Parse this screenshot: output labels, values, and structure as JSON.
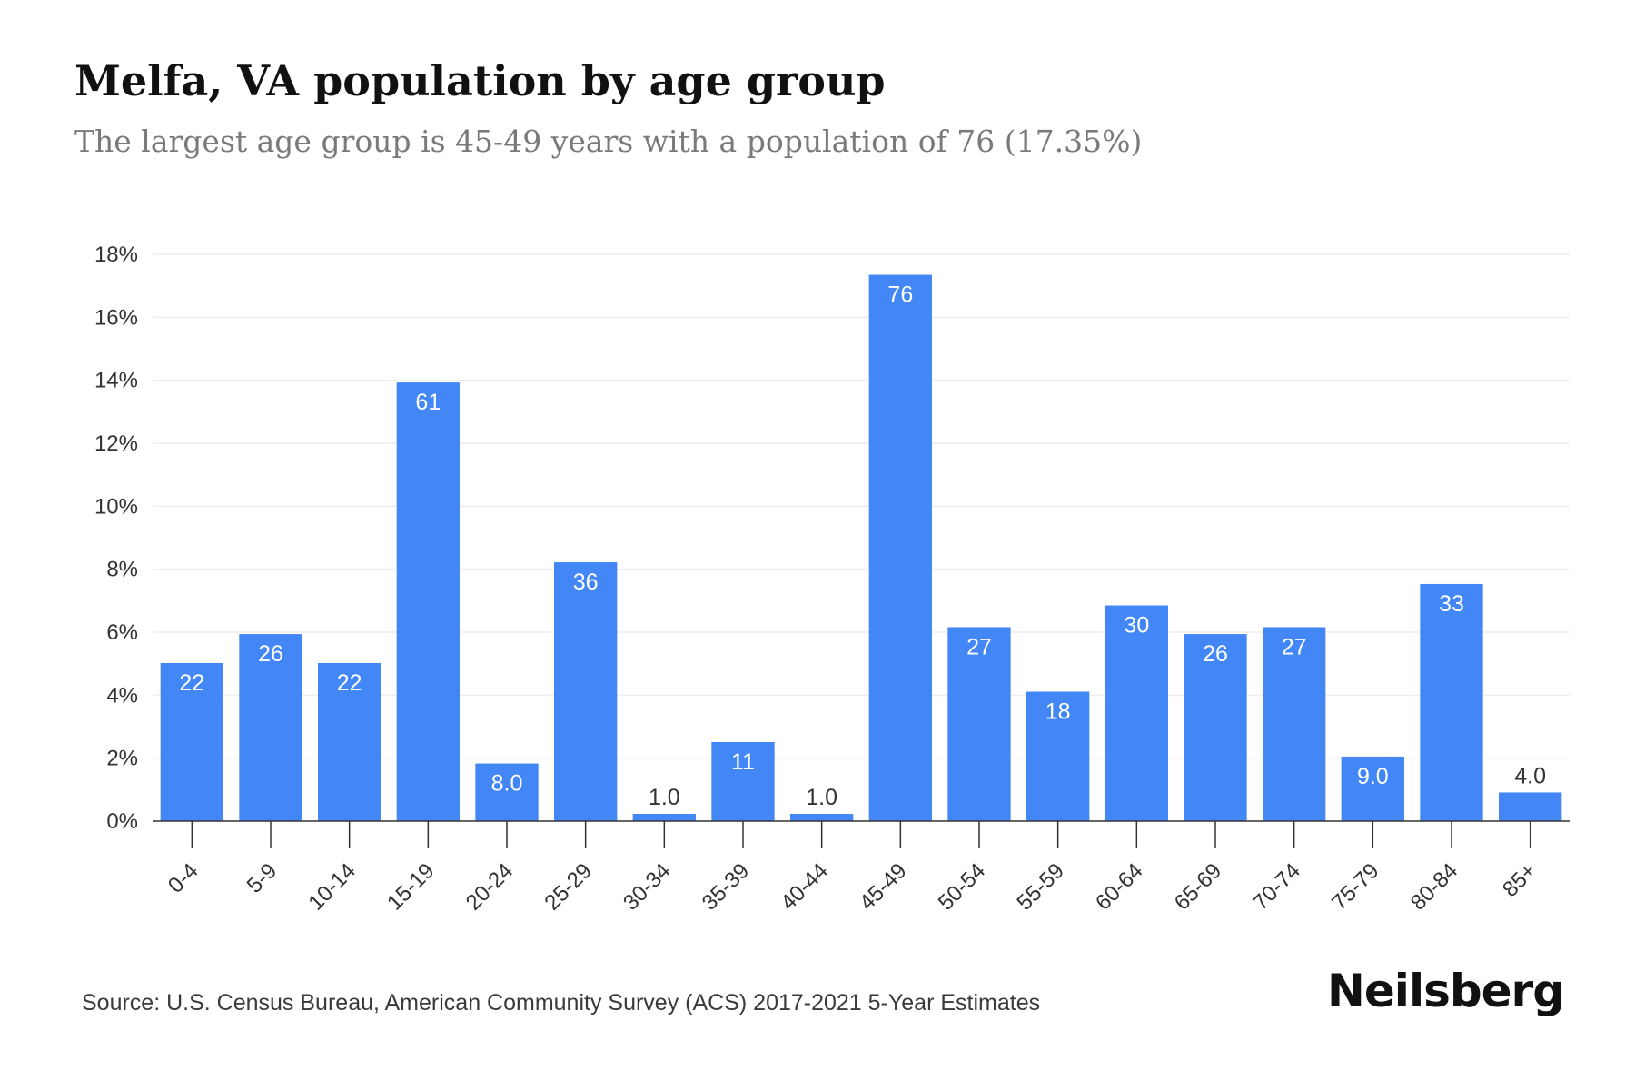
{
  "title": "Melfa, VA population by age group",
  "subtitle": "The largest age group is 45-49 years with a population of 76 (17.35%)",
  "source": "Source: U.S. Census Bureau, American Community Survey (ACS) 2017-2021 5-Year Estimates",
  "brand": "Neilsberg",
  "colors": {
    "bar": "#4287f5",
    "grid": "#eeeeee",
    "axis": "#333333"
  },
  "chart_data": {
    "type": "bar",
    "categories": [
      "0-4",
      "5-9",
      "10-14",
      "15-19",
      "20-24",
      "25-29",
      "30-34",
      "35-39",
      "40-44",
      "45-49",
      "50-54",
      "55-59",
      "60-64",
      "65-69",
      "70-74",
      "75-79",
      "80-84",
      "85+"
    ],
    "values": [
      5.02,
      5.94,
      5.02,
      13.93,
      1.83,
      8.22,
      0.23,
      2.51,
      0.23,
      17.35,
      6.16,
      4.11,
      6.85,
      5.94,
      6.16,
      2.05,
      7.53,
      0.91
    ],
    "data_labels": [
      "22",
      "26",
      "22",
      "61",
      "8.0",
      "36",
      "1.0",
      "11",
      "1.0",
      "76",
      "27",
      "18",
      "30",
      "26",
      "27",
      "9.0",
      "33",
      "4.0"
    ],
    "y_ticks": [
      "0%",
      "2%",
      "4%",
      "6%",
      "8%",
      "10%",
      "12%",
      "14%",
      "16%",
      "18%"
    ],
    "ylim": [
      0,
      18
    ],
    "grid": true,
    "legend": "none",
    "xlabel": "",
    "ylabel": ""
  }
}
